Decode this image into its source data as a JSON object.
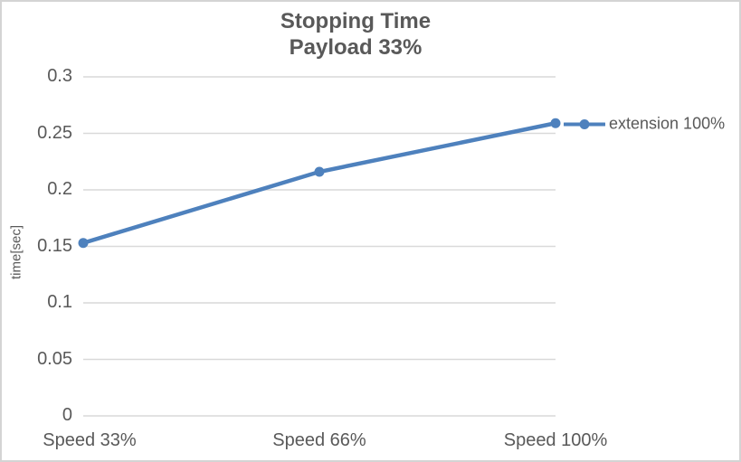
{
  "colors": {
    "accent": "#4E81BD",
    "text": "#595959",
    "gridline": "#D9D9D9",
    "frame_border": "#D4D4D4",
    "background": "#FFFFFF"
  },
  "chart_data": {
    "type": "line",
    "title": "Stopping Time",
    "subtitle": "Payload 33%",
    "categories": [
      "Speed 33%",
      "Speed 66%",
      "Speed 100%"
    ],
    "series": [
      {
        "name": "extension 100%",
        "values": [
          0.153,
          0.216,
          0.259
        ]
      }
    ],
    "xlabel": "",
    "ylabel": "time[sec]",
    "ylim": [
      0,
      0.3
    ],
    "ytick_step": 0.05,
    "yticks": [
      "0.3",
      "0.25",
      "0.2",
      "0.15",
      "0.1",
      "0.05",
      "0"
    ],
    "grid": true,
    "legend_position": "right-middle",
    "marker": "circle"
  }
}
